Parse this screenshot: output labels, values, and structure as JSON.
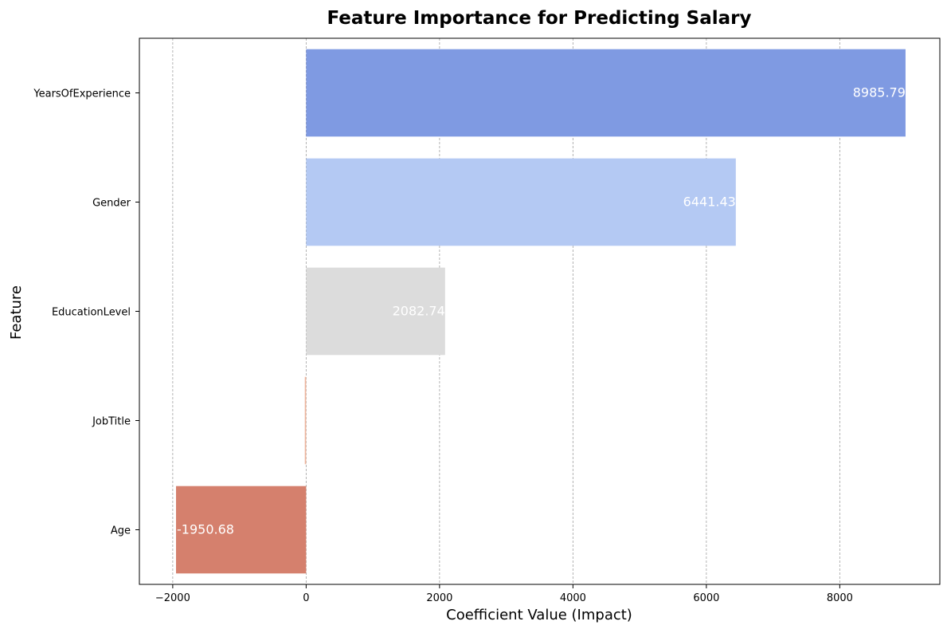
{
  "chart_data": {
    "type": "bar",
    "orientation": "horizontal",
    "title": "Feature Importance for Predicting Salary",
    "xlabel": "Coefficient Value (Impact)",
    "ylabel": "Feature",
    "categories": [
      "YearsOfExperience",
      "Gender",
      "EducationLevel",
      "JobTitle",
      "Age"
    ],
    "values": [
      8985.79,
      6441.43,
      2082.74,
      -20,
      -1950.68
    ],
    "data_labels": [
      "8985.79",
      "6441.43",
      "2082.74",
      "",
      "-1950.68"
    ],
    "bar_colors": [
      "#7f9ae2",
      "#b4c9f3",
      "#dcdcdc",
      "#efb69e",
      "#d5806d"
    ],
    "xlim": [
      -2500,
      9500
    ],
    "x_ticks": [
      -2000,
      0,
      2000,
      4000,
      6000,
      8000
    ],
    "x_tick_labels": [
      "−2000",
      "0",
      "2000",
      "4000",
      "6000",
      "8000"
    ],
    "grid": {
      "x": true,
      "y": false,
      "style": "dashed",
      "color": "#a0a0a0"
    },
    "legend": "none"
  }
}
